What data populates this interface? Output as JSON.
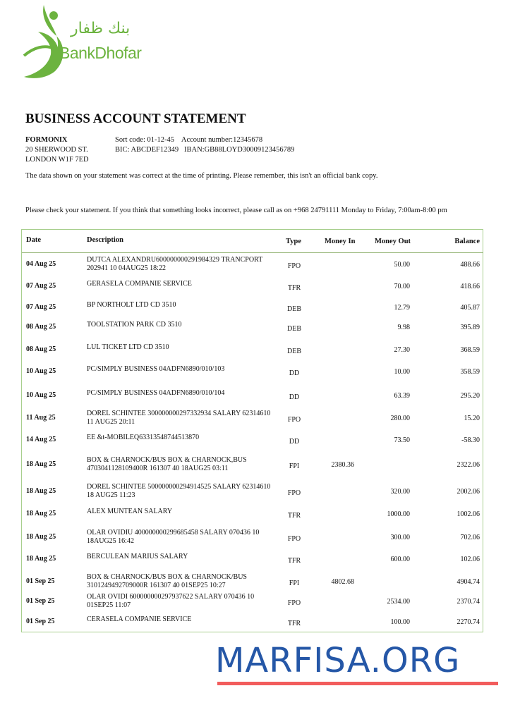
{
  "brand": {
    "name": "BankDhofar",
    "arabic_name": "بنك ظفار",
    "color": "#6cb33f"
  },
  "statement": {
    "title": "BUSINESS ACCOUNT STATEMENT",
    "company": "FORMONIX",
    "address_line1": "20 SHERWOOD ST.",
    "address_line2": "LONDON W1F 7ED",
    "sort_line": "Sort code: 01-12-45    Account number:12345678",
    "bic_line": "BIC: ABCDEF12349   IBAN:GB88LOYD30009123456789",
    "note1": "The data shown on your statement was correct at the time of printing. Please remember, this isn't an official bank copy.",
    "note2": "Please check your statement. If you think that something looks incorrect, please call as on +968 24791111 Monday to Friday, 7:00am-8:00 pm"
  },
  "table": {
    "headers": {
      "date": "Date",
      "description": "Description",
      "type": "Type",
      "money_in": "Money In",
      "money_out": "Money Out",
      "balance": "Balance"
    },
    "rows": [
      {
        "date": "04 Aug 25",
        "description": "DUTCA ALEXANDRU600000000291984329 TRANCPORT 202941 10 04AUG25 18:22",
        "type": "FPO",
        "money_in": "",
        "money_out": "50.00",
        "balance": "488.66"
      },
      {
        "date": "07 Aug 25",
        "description": "GERASELA COMPANIE SERVICE",
        "type": "TFR",
        "money_in": "",
        "money_out": "70.00",
        "balance": "418.66"
      },
      {
        "date": "07 Aug 25",
        "description": "BP NORTHOLT LTD CD 3510",
        "type": "DEB",
        "money_in": "",
        "money_out": "12.79",
        "balance": "405.87"
      },
      {
        "date": "08 Aug 25",
        "description": "TOOLSTATION PARK CD 3510",
        "type": "DEB",
        "money_in": "",
        "money_out": "9.98",
        "balance": "395.89"
      },
      {
        "date": "08 Aug 25",
        "description": "LUL TICKET LTD CD 3510",
        "type": "DEB",
        "money_in": "",
        "money_out": "27.30",
        "balance": "368.59"
      },
      {
        "date": "10 Aug 25",
        "description": "PC/SIMPLY BUSINESS 04ADFN6890/010/103",
        "type": "DD",
        "money_in": "",
        "money_out": "10.00",
        "balance": "358.59"
      },
      {
        "date": "10 Aug 25",
        "description": "PC/SIMPLY BUSINESS 04ADFN6890/010/104",
        "type": "DD",
        "money_in": "",
        "money_out": "63.39",
        "balance": "295.20"
      },
      {
        "date": "11 Aug 25",
        "description": "DOREL SCHINTEE 300000000297332934 SALARY 62314610 11 AUG25 20:11",
        "type": "FPO",
        "money_in": "",
        "money_out": "280.00",
        "balance": "15.20"
      },
      {
        "date": "14 Aug 25",
        "description": "EE &t-MOBILEQ63313548744513870",
        "type": "DD",
        "money_in": "",
        "money_out": "73.50",
        "balance": "-58.30"
      },
      {
        "date": "18 Aug 25",
        "description": "BOX & CHARNOCK/BUS BOX & CHARNOCK,BUS 4703041128109400R 161307 40 18AUG25 03:11",
        "type": "FPI",
        "money_in": "2380.36",
        "money_out": "",
        "balance": "2322.06"
      },
      {
        "date": "18 Aug 25",
        "description": "DOREL SCHINTEE 500000000294914525 SALARY 62314610 18 AUG25 11:23",
        "type": "FPO",
        "money_in": "",
        "money_out": "320.00",
        "balance": "2002.06"
      },
      {
        "date": "18 Aug 25",
        "description": "ALEX MUNTEAN SALARY",
        "type": "TFR",
        "money_in": "",
        "money_out": "1000.00",
        "balance": "1002.06"
      },
      {
        "date": "18 Aug 25",
        "description": "OLAR OVIDIU 400000000299685458 SALARY 070436 10 18AUG25 16:42",
        "type": "FPO",
        "money_in": "",
        "money_out": "300.00",
        "balance": "702.06"
      },
      {
        "date": "18 Aug 25",
        "description": "BERCULEAN MARIUS SALARY",
        "type": "TFR",
        "money_in": "",
        "money_out": "600.00",
        "balance": "102.06"
      },
      {
        "date": "01 Sep 25",
        "description": "BOX & CHARNOCK/BUS BOX & CHARNOCK/BUS 3101249492709000R 161307 40 01SEP25 10:27",
        "type": "FPI",
        "money_in": "4802.68",
        "money_out": "",
        "balance": "4904.74"
      },
      {
        "date": "01 Sep 25",
        "description": "OLAR OVIDI 600000000297937622 SALARY 070436 10 01SEP25 11:07",
        "type": "FPO",
        "money_in": "",
        "money_out": "2534.00",
        "balance": "2370.74"
      },
      {
        "date": "01 Sep 25",
        "description": "CERASELA COMPANIE SERVICE",
        "type": "TFR",
        "money_in": "",
        "money_out": "100.00",
        "balance": "2270.74"
      }
    ]
  },
  "watermark": {
    "text": "MARFISA.ORG",
    "color": "#2557a7",
    "underline_color": "#f25c5c"
  }
}
